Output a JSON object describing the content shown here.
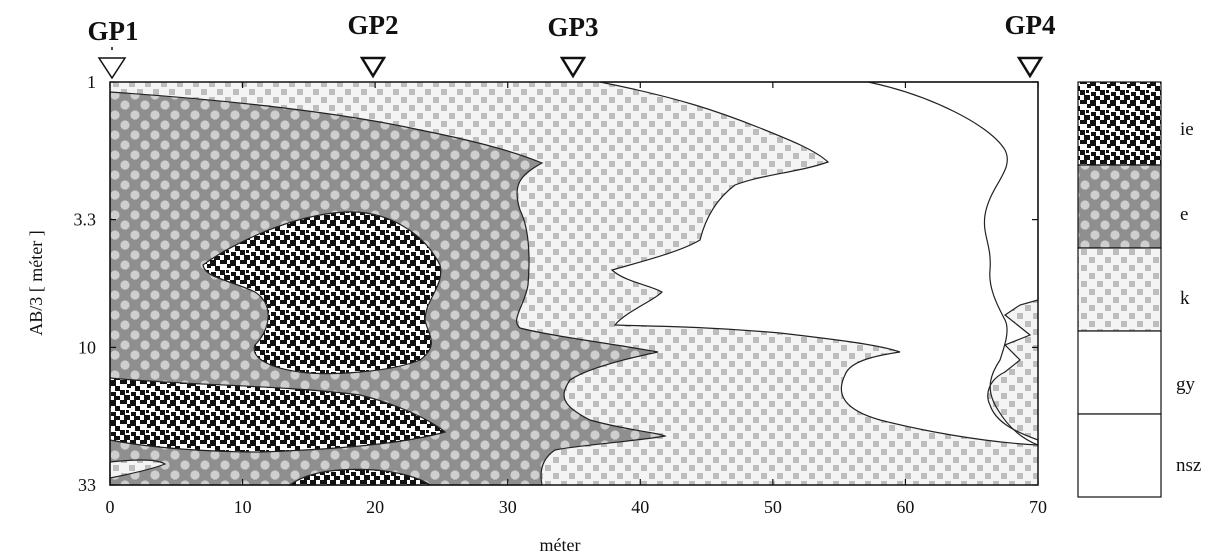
{
  "profile": {
    "gp_labels": [
      "GP1",
      "GP2",
      "GP3",
      "GP4"
    ],
    "gp_positions_m": [
      0,
      20,
      35,
      69.5
    ],
    "x_axis": {
      "title": "méter",
      "range": [
        0,
        70
      ],
      "ticks": [
        "0",
        "10",
        "20",
        "30",
        "40",
        "50",
        "60",
        "70"
      ]
    },
    "y_axis": {
      "title": "AB/3  [ méter ]",
      "scale": "log",
      "range": [
        1,
        33
      ],
      "ticks": [
        "1",
        "3.3",
        "10",
        "33"
      ]
    }
  },
  "legend": [
    {
      "code": "ie",
      "pattern": "black-white-weave"
    },
    {
      "code": "e",
      "pattern": "dark-gray-checker",
      "color": "#8c8c8c"
    },
    {
      "code": "k",
      "pattern": "light-gray-squares",
      "color": "#c8c8c8"
    },
    {
      "code": "gy",
      "pattern": "blank",
      "color": "#ffffff"
    },
    {
      "code": "nsz",
      "pattern": "blank",
      "color": "#ffffff"
    }
  ]
}
